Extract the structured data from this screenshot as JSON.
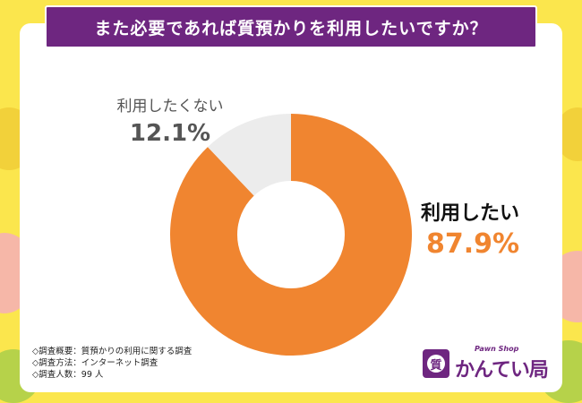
{
  "title": "また必要であれば質預かりを利用したいですか？",
  "chart_data": {
    "type": "pie",
    "donut": true,
    "slices": [
      {
        "label": "利用したい",
        "value": 87.9,
        "display": "87.9%",
        "color": "#f08530"
      },
      {
        "label": "利用したくない",
        "value": 12.1,
        "display": "12.1%",
        "color": "#ececec"
      }
    ]
  },
  "notes": [
    "◇調査概要：質預かりの利用に関する調査",
    "◇調査方法：インターネット調査",
    "◇調査人数：99 人"
  ],
  "logo": {
    "mark": "質",
    "tagline": "Pawn Shop",
    "name": "かんてい局"
  },
  "colors": {
    "background": "#fbe64d",
    "accent": "#6e2680",
    "primary_slice": "#f08530",
    "secondary_slice": "#ececec"
  }
}
